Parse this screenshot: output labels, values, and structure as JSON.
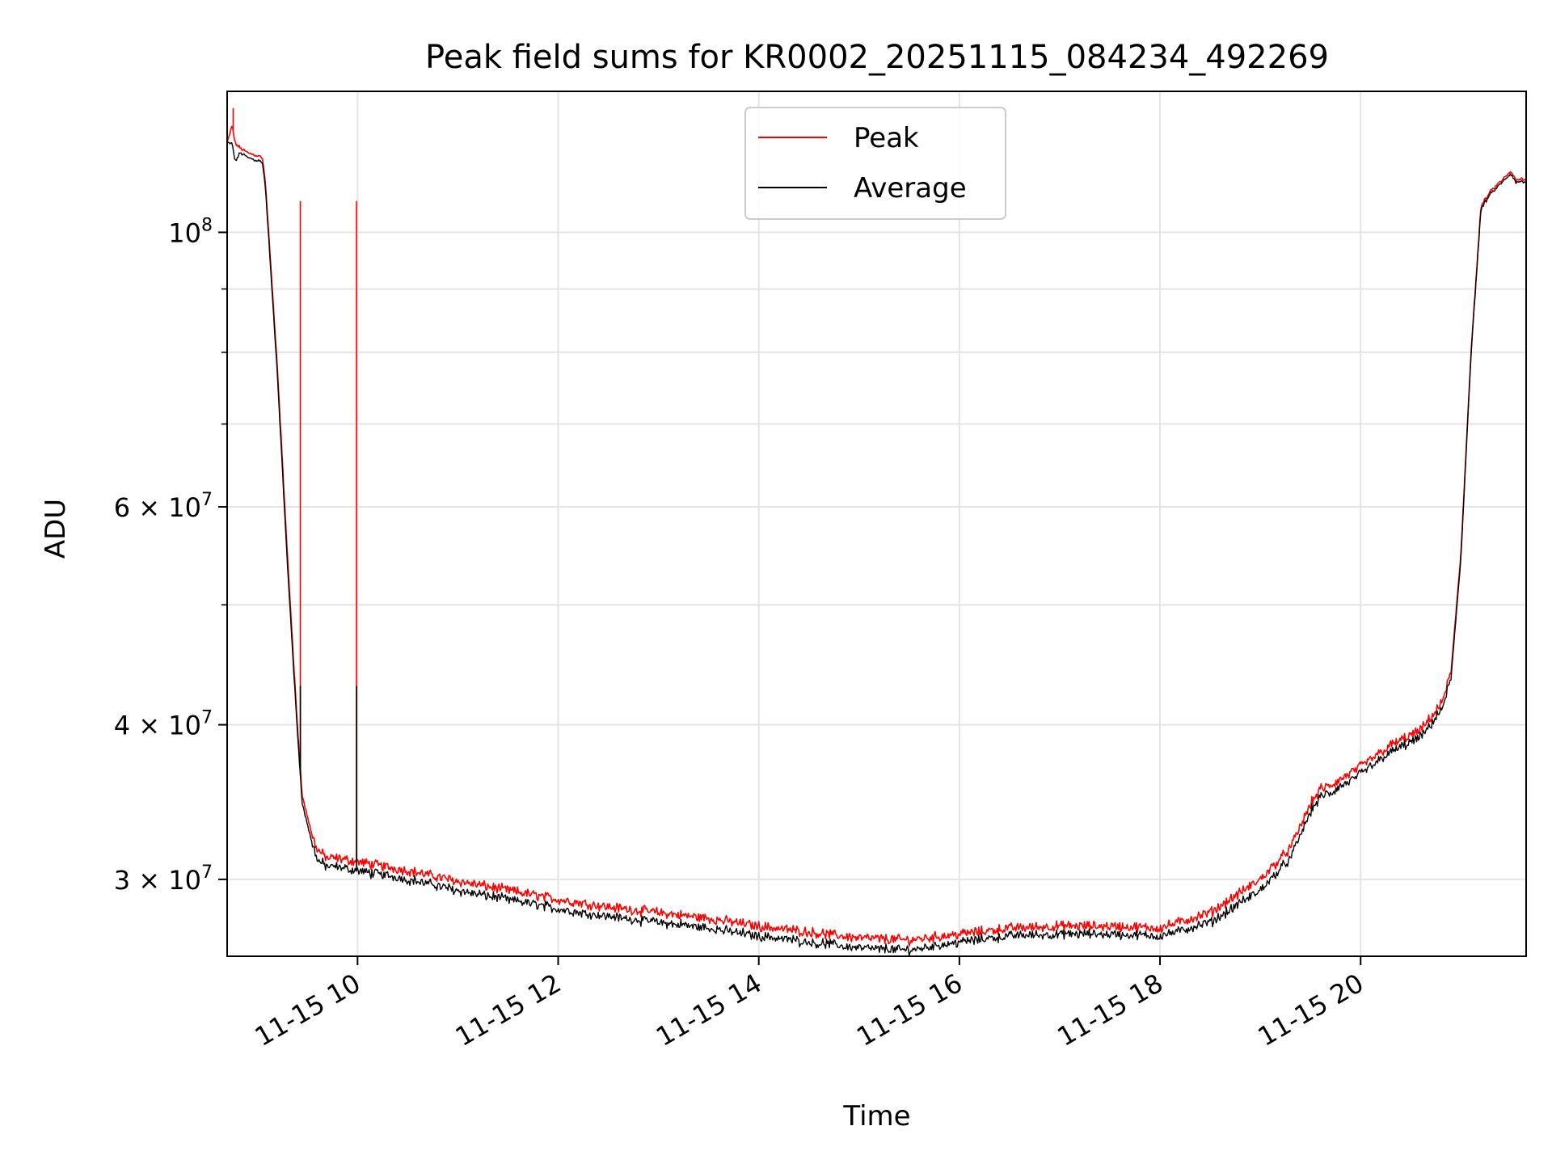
{
  "chart_data": {
    "type": "line",
    "title": "Peak field sums for KR0002_20251115_084234_492269",
    "xlabel": "Time",
    "ylabel": "ADU",
    "yscale": "log",
    "grid": true,
    "legend_position": "top-center",
    "xlim": [
      8.7,
      21.65
    ],
    "ylim": [
      26000000,
      130000000
    ],
    "x_unit": "hours of 2025-11-15",
    "x_ticks": [
      {
        "value": 10,
        "label": "11-15 10"
      },
      {
        "value": 12,
        "label": "11-15 12"
      },
      {
        "value": 14,
        "label": "11-15 14"
      },
      {
        "value": 16,
        "label": "11-15 16"
      },
      {
        "value": 18,
        "label": "11-15 18"
      },
      {
        "value": 20,
        "label": "11-15 20"
      }
    ],
    "y_ticks": [
      {
        "value": 100000000,
        "mantissa": "",
        "exponent": "8",
        "base": "10"
      },
      {
        "value": 60000000,
        "mantissa": "6",
        "exponent": "7",
        "base": "10"
      },
      {
        "value": 40000000,
        "mantissa": "4",
        "exponent": "7",
        "base": "10"
      },
      {
        "value": 30000000,
        "mantissa": "3",
        "exponent": "7",
        "base": "10"
      }
    ],
    "y_minor_ticks": [
      90000000,
      80000000,
      70000000,
      50000000
    ],
    "times_symbol": "×",
    "series": [
      {
        "name": "Peak",
        "color": "#ff0000",
        "x": [
          8.7,
          8.75,
          8.78,
          8.83,
          8.9,
          9.05,
          9.08,
          9.1,
          9.2,
          9.3,
          9.4,
          9.45,
          9.55,
          9.6,
          9.7,
          9.8,
          9.9,
          10.0,
          10.5,
          11.0,
          11.5,
          12.0,
          12.5,
          13.0,
          13.5,
          14.0,
          14.5,
          15.0,
          15.5,
          16.0,
          16.5,
          17.0,
          17.5,
          18.0,
          18.5,
          19.0,
          19.3,
          19.5,
          19.6,
          19.7,
          20.0,
          20.3,
          20.6,
          20.8,
          20.9,
          21.0,
          21.1,
          21.2,
          21.3,
          21.4,
          21.5,
          21.55,
          21.6,
          21.65
        ],
        "values": [
          118000000,
          122000000,
          118000000,
          117000000,
          116000000,
          115000000,
          110000000,
          104000000,
          78000000,
          55000000,
          40000000,
          35000000,
          32500000,
          31700000,
          31200000,
          31200000,
          31100000,
          31000000,
          30500000,
          29900000,
          29400000,
          28900000,
          28500000,
          28200000,
          27900000,
          27500000,
          27200000,
          26900000,
          26800000,
          27100000,
          27400000,
          27500000,
          27500000,
          27400000,
          28200000,
          30000000,
          31800000,
          34500000,
          35500000,
          35700000,
          37000000,
          38500000,
          39600000,
          41500000,
          44000000,
          55000000,
          80000000,
          105000000,
          108000000,
          110000000,
          112000000,
          110000000,
          110500000,
          110000000
        ],
        "spikes": [
          {
            "x": 8.76,
            "value": 126000000
          },
          {
            "x": 9.43,
            "value": 106000000
          },
          {
            "x": 9.99,
            "value": 106000000
          }
        ]
      },
      {
        "name": "Average",
        "color": "#000000",
        "x": [
          8.7,
          8.75,
          8.78,
          8.83,
          8.9,
          9.05,
          9.08,
          9.1,
          9.2,
          9.3,
          9.4,
          9.45,
          9.55,
          9.6,
          9.7,
          9.8,
          9.9,
          10.0,
          10.5,
          11.0,
          11.5,
          12.0,
          12.5,
          13.0,
          13.5,
          14.0,
          14.5,
          15.0,
          15.5,
          16.0,
          16.5,
          17.0,
          17.5,
          18.0,
          18.5,
          19.0,
          19.3,
          19.5,
          19.6,
          19.7,
          20.0,
          20.3,
          20.6,
          20.8,
          20.9,
          21.0,
          21.1,
          21.2,
          21.3,
          21.4,
          21.5,
          21.55,
          21.6,
          21.65
        ],
        "values": [
          118000000,
          118000000,
          114000000,
          116000000,
          115000000,
          114000000,
          109000000,
          103000000,
          77000000,
          54000000,
          39500000,
          34500000,
          32000000,
          31100000,
          30700000,
          30700000,
          30600000,
          30500000,
          30000000,
          29400000,
          28900000,
          28400000,
          28000000,
          27700000,
          27400000,
          27000000,
          26700000,
          26400000,
          26300000,
          26700000,
          27000000,
          27100000,
          27100000,
          27000000,
          27700000,
          29400000,
          31200000,
          34000000,
          35000000,
          35200000,
          36500000,
          38000000,
          39100000,
          41000000,
          43500000,
          54500000,
          79500000,
          104500000,
          107500000,
          109500000,
          111500000,
          109500000,
          110000000,
          109500000
        ],
        "spikes": [
          {
            "x": 9.43,
            "value": 43000000
          },
          {
            "x": 9.99,
            "value": 43000000
          }
        ]
      }
    ]
  }
}
